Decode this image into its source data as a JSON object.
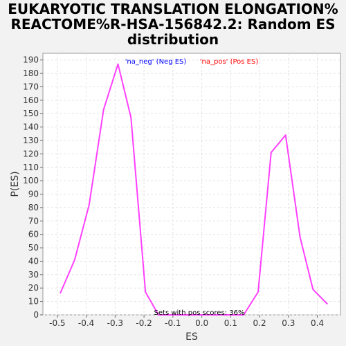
{
  "chart_data": {
    "type": "line",
    "title_lines": [
      "EUKARYOTIC TRANSLATION ELONGATION%",
      "REACTOME%R-HSA-156842.2: Random ES",
      "distribution"
    ],
    "xlabel": "ES",
    "ylabel": "P(ES)",
    "xlim": [
      -0.55,
      0.48
    ],
    "ylim": [
      0,
      195
    ],
    "x_ticks": [
      -0.5,
      -0.4,
      -0.3,
      -0.2,
      -0.1,
      0.0,
      0.1,
      0.2,
      0.3,
      0.4
    ],
    "x_tick_labels": [
      "-0.5",
      "-0.4",
      "-0.3",
      "-0.2",
      "-0.1",
      "0.0",
      "0.1",
      "0.2",
      "0.3",
      "0.4"
    ],
    "y_ticks": [
      0,
      10,
      20,
      30,
      40,
      50,
      60,
      70,
      80,
      90,
      100,
      110,
      120,
      130,
      140,
      150,
      160,
      170,
      180,
      190
    ],
    "grid": true,
    "legend": [
      {
        "label": "'na_neg' (Neg ES)",
        "color": "#0000ff"
      },
      {
        "label": "'na_pos' (Pos ES)",
        "color": "#ff0000"
      }
    ],
    "legend_placement": "top-center",
    "annotation": "Sets with pos scores: 36%",
    "series": [
      {
        "color": "#ff40ff",
        "x": [
          -0.49,
          -0.44,
          -0.39,
          -0.34,
          -0.29,
          -0.245,
          -0.195,
          -0.15,
          -0.1,
          -0.05,
          0.0,
          0.05,
          0.1,
          0.145,
          0.195,
          0.24,
          0.29,
          0.34,
          0.385,
          0.435
        ],
        "y": [
          16,
          41,
          82,
          153,
          187,
          147,
          17,
          0,
          0,
          0,
          0,
          0,
          0,
          0,
          17,
          121,
          134,
          58,
          19,
          8
        ]
      }
    ]
  }
}
